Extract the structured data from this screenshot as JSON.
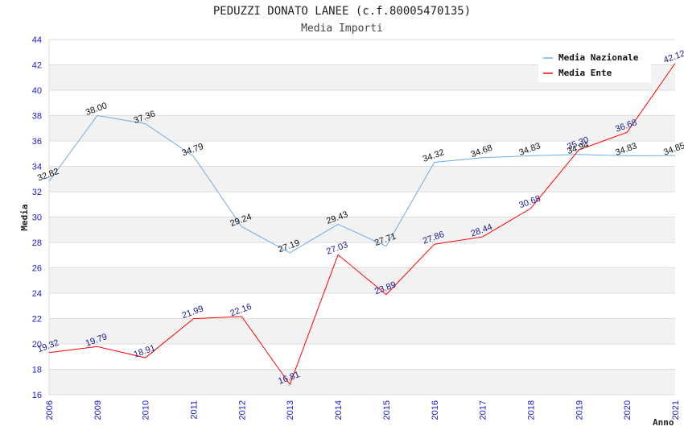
{
  "chart_data": {
    "type": "line",
    "title": "PEDUZZI DONATO LANEE (c.f.80005470135)",
    "subtitle": "Media Importi",
    "xlabel": "Anno",
    "ylabel": "Media",
    "ylim": [
      16,
      44
    ],
    "yticks": [
      "16",
      "18",
      "20",
      "22",
      "24",
      "26",
      "28",
      "30",
      "32",
      "34",
      "36",
      "38",
      "40",
      "42",
      "44"
    ],
    "categories": [
      "2006",
      "2009",
      "2010",
      "2011",
      "2012",
      "2013",
      "2014",
      "2015",
      "2016",
      "2017",
      "2018",
      "2019",
      "2020",
      "2021"
    ],
    "grid": true,
    "legend_position": "top-right",
    "series": [
      {
        "name": "Media Nazionale",
        "color": "#6aaee8",
        "label_color": "#111111",
        "values": [
          32.82,
          38.0,
          37.36,
          34.79,
          29.24,
          27.19,
          29.43,
          27.71,
          34.32,
          34.68,
          34.83,
          34.94,
          34.83,
          34.85
        ],
        "labels": [
          "32.82",
          "38.00",
          "37.36",
          "34.79",
          "29.24",
          "27.19",
          "29.43",
          "27.71",
          "34.32",
          "34.68",
          "34.83",
          "34.94",
          "34.83",
          "34.85"
        ]
      },
      {
        "name": "Media Ente",
        "color": "#ff0000",
        "label_color": "#1a1a8c",
        "values": [
          19.32,
          19.79,
          18.91,
          21.99,
          22.16,
          16.81,
          27.03,
          23.89,
          27.86,
          28.44,
          30.68,
          35.3,
          36.68,
          42.12
        ],
        "labels": [
          "19.32",
          "19.79",
          "18.91",
          "21.99",
          "22.16",
          "16.81",
          "27.03",
          "23.89",
          "27.86",
          "28.44",
          "30.68",
          "35.30",
          "36.68",
          "42.12"
        ]
      }
    ]
  }
}
